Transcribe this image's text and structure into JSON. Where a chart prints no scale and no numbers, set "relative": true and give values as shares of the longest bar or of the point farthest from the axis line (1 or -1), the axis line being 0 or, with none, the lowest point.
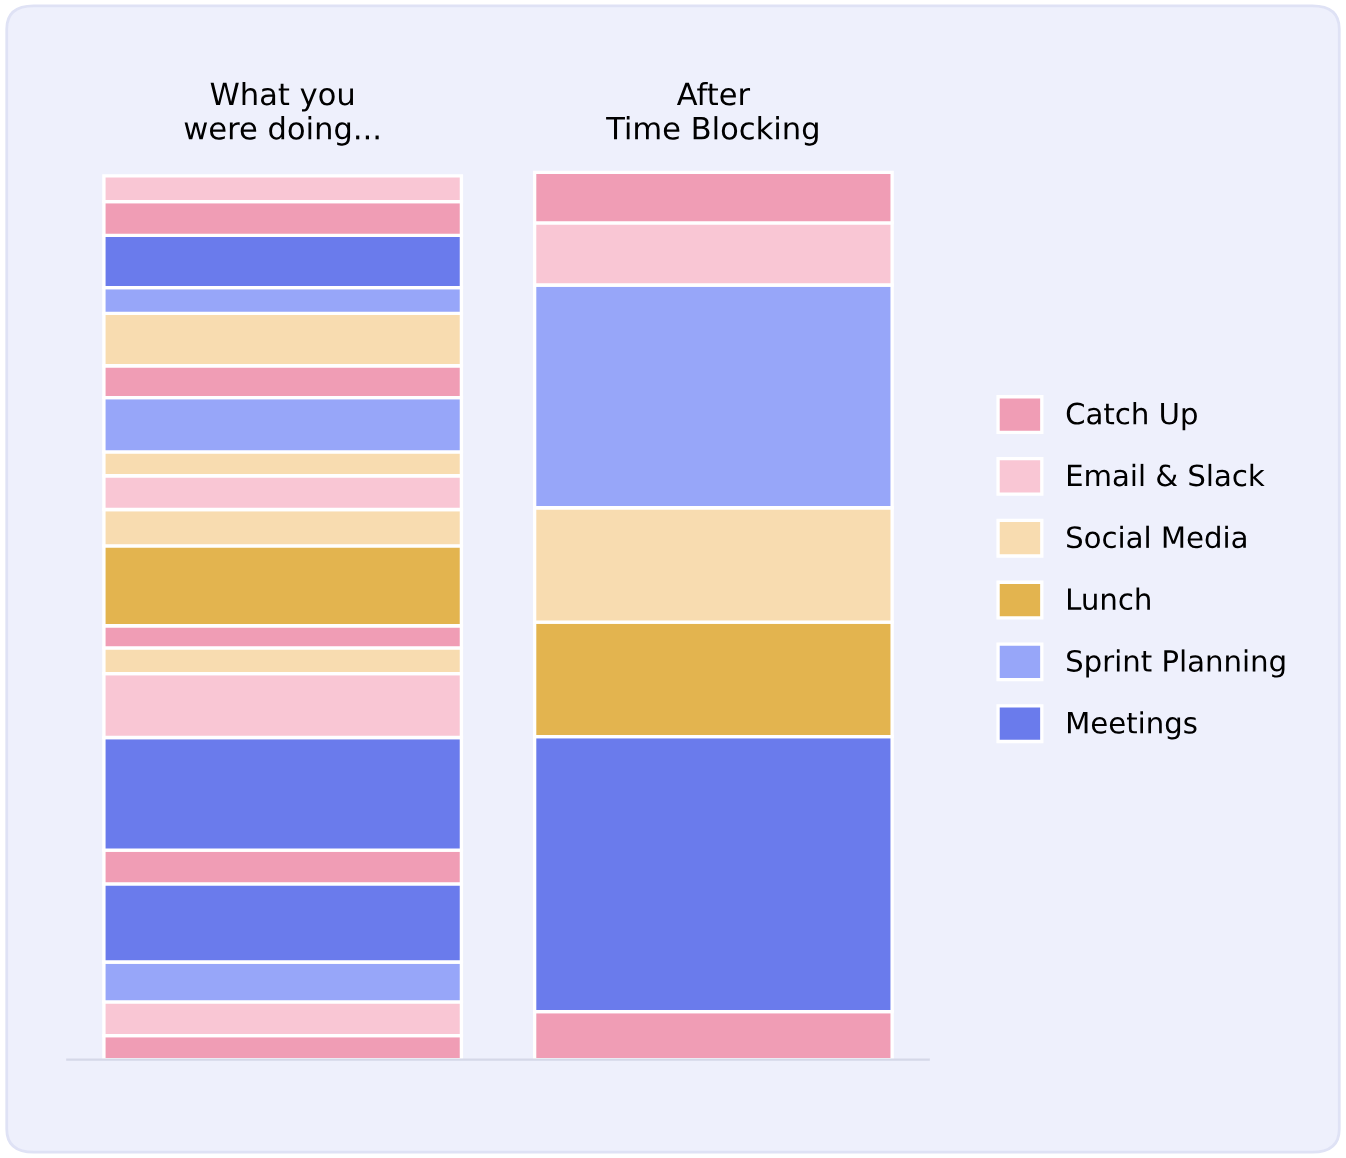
{
  "chart_data": {
    "type": "bar",
    "stacked": true,
    "relative": true,
    "legend": "right",
    "categories": [
      "What you\nwere doing...",
      "After\nTime Blocking"
    ],
    "series": [
      {
        "name": "Catch Up",
        "color": "#f09db5",
        "values": [
          0.027,
          null
        ]
      },
      {
        "name": "Email & Slack",
        "color": "#f9c6d4",
        "values": [
          0.038,
          null
        ]
      },
      {
        "color": "#97a6f9",
        "values": [
          0.045,
          null
        ]
      },
      {
        "color": "#6a7bec",
        "values": [
          0.088,
          null
        ]
      },
      {
        "color": "#f09db5",
        "values": [
          0.038,
          null
        ]
      },
      {
        "color": "#6a7bec",
        "values": [
          0.127,
          null
        ]
      },
      {
        "color": "#f9c6d4",
        "values": [
          0.072,
          null
        ]
      },
      {
        "name": "Social Media",
        "color": "#f8dcb0",
        "values": [
          0.029,
          null
        ]
      },
      {
        "color": "#f09db5",
        "values": [
          0.025,
          null
        ]
      },
      {
        "name": "Lunch",
        "color": "#e3b44f",
        "values": [
          0.09,
          null
        ]
      },
      {
        "color": "#f8dcb0",
        "values": [
          0.041,
          null
        ]
      },
      {
        "color": "#f9c6d4",
        "values": [
          0.038,
          null
        ]
      },
      {
        "color": "#f8dcb0",
        "values": [
          0.027,
          null
        ]
      },
      {
        "name": "Sprint Planning",
        "color": "#97a6f9",
        "values": [
          0.061,
          null
        ]
      },
      {
        "color": "#f09db5",
        "values": [
          0.036,
          null
        ]
      },
      {
        "color": "#f8dcb0",
        "values": [
          0.059,
          null
        ]
      },
      {
        "color": "#97a6f9",
        "values": [
          0.029,
          null
        ]
      },
      {
        "name": "Meetings",
        "color": "#6a7bec",
        "values": [
          0.059,
          null
        ]
      },
      {
        "color": "#f09db5",
        "values": [
          0.038,
          null
        ]
      },
      {
        "color": "#f9c6d4",
        "values": [
          0.029,
          null
        ]
      },
      {
        "color": "#f09db5",
        "values": [
          null,
          0.054
        ]
      },
      {
        "color": "#6a7bec",
        "values": [
          null,
          0.31
        ]
      },
      {
        "color": "#e3b44f",
        "values": [
          null,
          0.129
        ]
      },
      {
        "color": "#f8dcb0",
        "values": [
          null,
          0.129
        ]
      },
      {
        "color": "#97a6f9",
        "values": [
          null,
          0.251
        ]
      },
      {
        "color": "#f9c6d4",
        "values": [
          null,
          0.07
        ]
      },
      {
        "color": "#f09db5",
        "values": [
          null,
          0.057
        ]
      }
    ]
  }
}
